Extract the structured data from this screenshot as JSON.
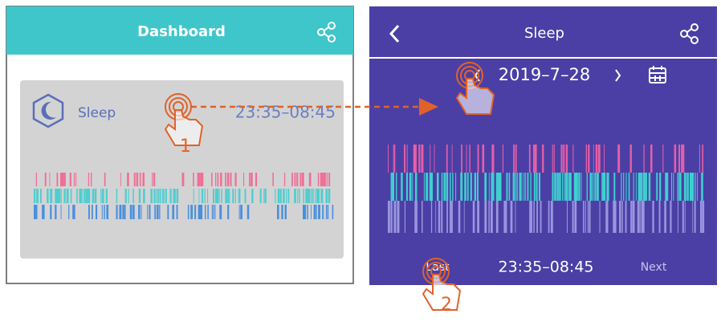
{
  "left_screen": {
    "header": {
      "title": "Dashboard"
    },
    "card": {
      "label": "Sleep",
      "time_range": "23:35–08:45"
    }
  },
  "right_screen": {
    "header": {
      "title": "Sleep"
    },
    "date": "2019–7–28",
    "time_range": "23:35–08:45",
    "previous": "Last",
    "next": "Next"
  },
  "annotations": {
    "step_1": "1",
    "step_2": "2"
  }
}
